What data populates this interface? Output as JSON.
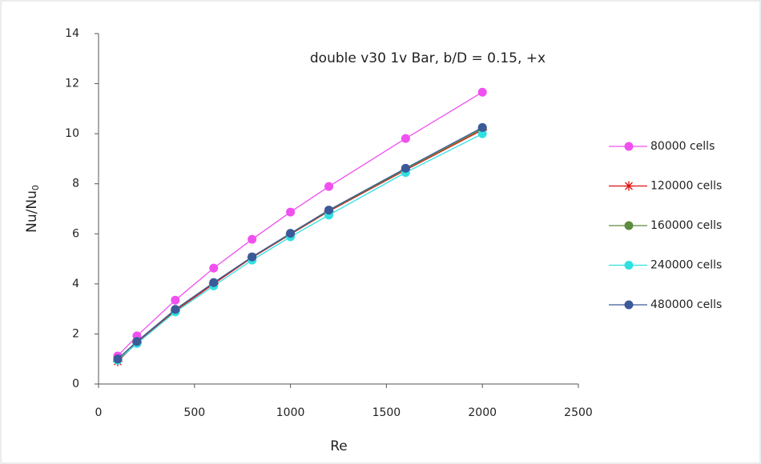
{
  "chart_data": {
    "type": "line",
    "annotation": "double v30 1v Bar, b/D = 0.15, +x",
    "x_label": "Re",
    "y_label": "Nu/Nu",
    "y_label_subscript": "0",
    "x": [
      100,
      200,
      400,
      600,
      800,
      1000,
      1200,
      1600,
      2000
    ],
    "xlim": [
      0,
      2500
    ],
    "xticks": [
      0,
      500,
      1000,
      1500,
      2000,
      2500
    ],
    "ylim": [
      0,
      14
    ],
    "yticks": [
      0,
      2,
      4,
      6,
      8,
      10,
      12,
      14
    ],
    "grid": false,
    "legend": "right",
    "series": [
      {
        "name": "80000 cells",
        "color": "#f050f0",
        "marker": "circle",
        "values": [
          1.12,
          1.92,
          3.35,
          4.63,
          5.78,
          6.87,
          7.89,
          9.81,
          11.66
        ]
      },
      {
        "name": "120000 cells",
        "color": "#e01010",
        "marker": "asterisk",
        "values": [
          0.9,
          1.65,
          2.92,
          4.0,
          5.05,
          5.98,
          6.9,
          8.55,
          10.15
        ]
      },
      {
        "name": "160000 cells",
        "color": "#5e8c3e",
        "marker": "circle",
        "values": [
          1.0,
          1.7,
          2.97,
          4.05,
          5.07,
          6.0,
          6.93,
          8.58,
          10.2
        ]
      },
      {
        "name": "240000 cells",
        "color": "#30e0e0",
        "marker": "circle",
        "values": [
          0.95,
          1.62,
          2.88,
          3.92,
          4.95,
          5.88,
          6.75,
          8.45,
          10.0
        ]
      },
      {
        "name": "480000 cells",
        "color": "#3a5a98",
        "marker": "circle",
        "values": [
          1.0,
          1.7,
          2.98,
          4.05,
          5.08,
          6.02,
          6.95,
          8.62,
          10.25
        ]
      }
    ]
  }
}
